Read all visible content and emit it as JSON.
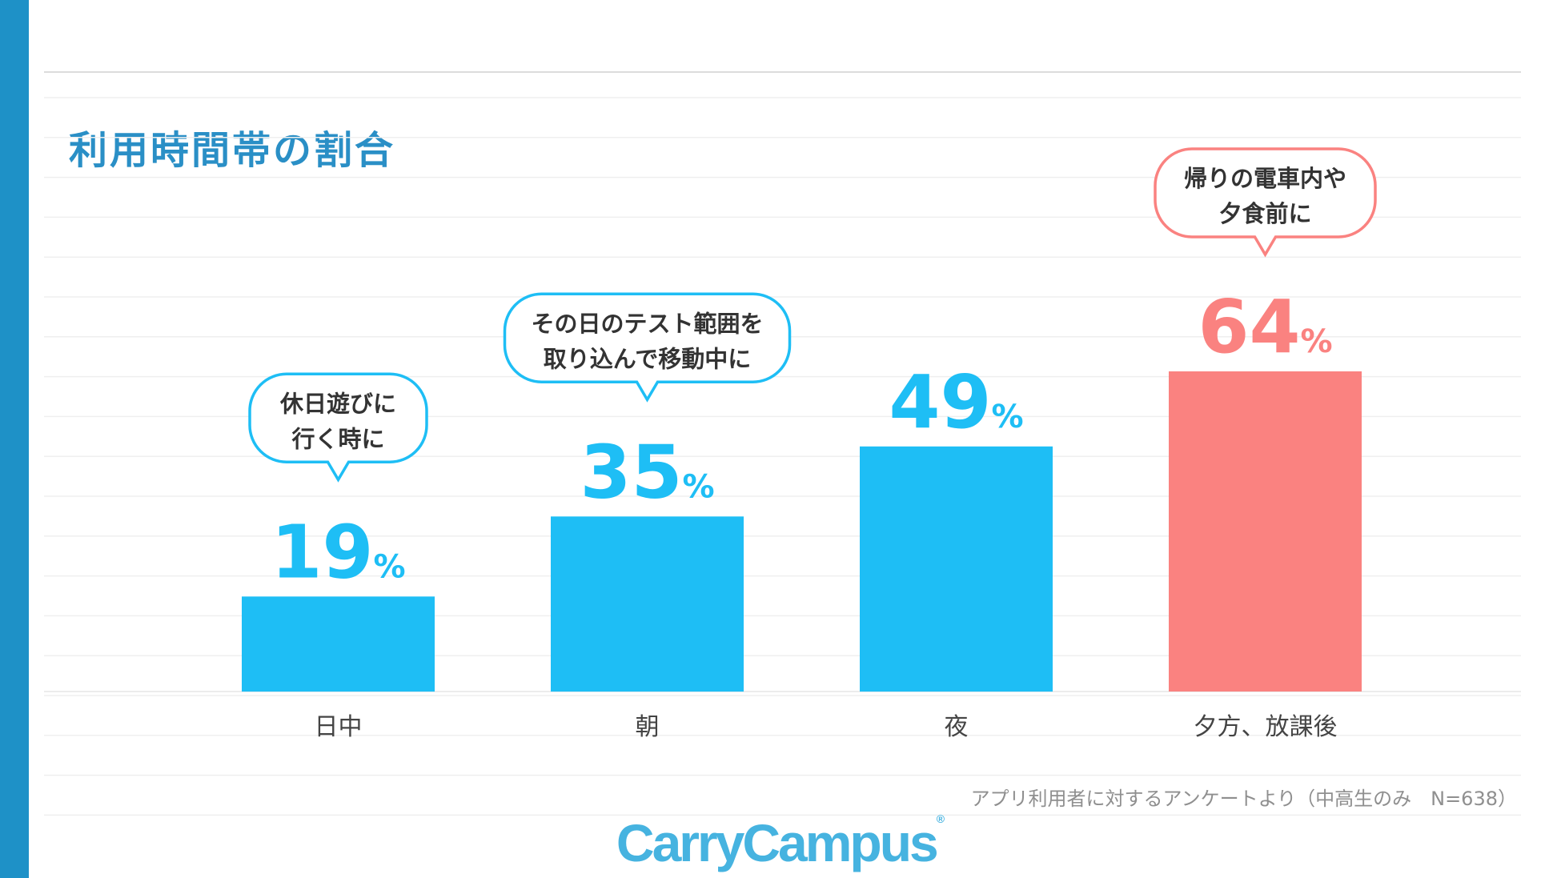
{
  "title": "利用時間帯の割合",
  "note": "アプリ利用者に対するアンケートより（中高生のみ　N=638）",
  "logo": {
    "text": "CarryCampus",
    "mark": "®"
  },
  "colors": {
    "stripe": "#1e91c7",
    "title": "#2a8fc6",
    "bar": "#1ebef5",
    "highlight": "#fa8280",
    "axis_label": "#444444"
  },
  "chart_data": {
    "type": "bar",
    "title": "利用時間帯の割合",
    "categories": [
      "日中",
      "朝",
      "夜",
      "夕方、放課後"
    ],
    "values": [
      19,
      35,
      49,
      64
    ],
    "value_suffix": "%",
    "ylim": [
      0,
      100
    ],
    "grid": true,
    "highlight_index": 3,
    "callouts": [
      {
        "category": "日中",
        "lines": [
          "休日遊びに",
          "行く時に"
        ]
      },
      {
        "category": "朝",
        "lines": [
          "その日のテスト範囲を",
          "取り込んで移動中に"
        ]
      },
      {
        "category": "夕方、放課後",
        "lines": [
          "帰りの電車内や",
          "夕食前に"
        ]
      }
    ]
  }
}
